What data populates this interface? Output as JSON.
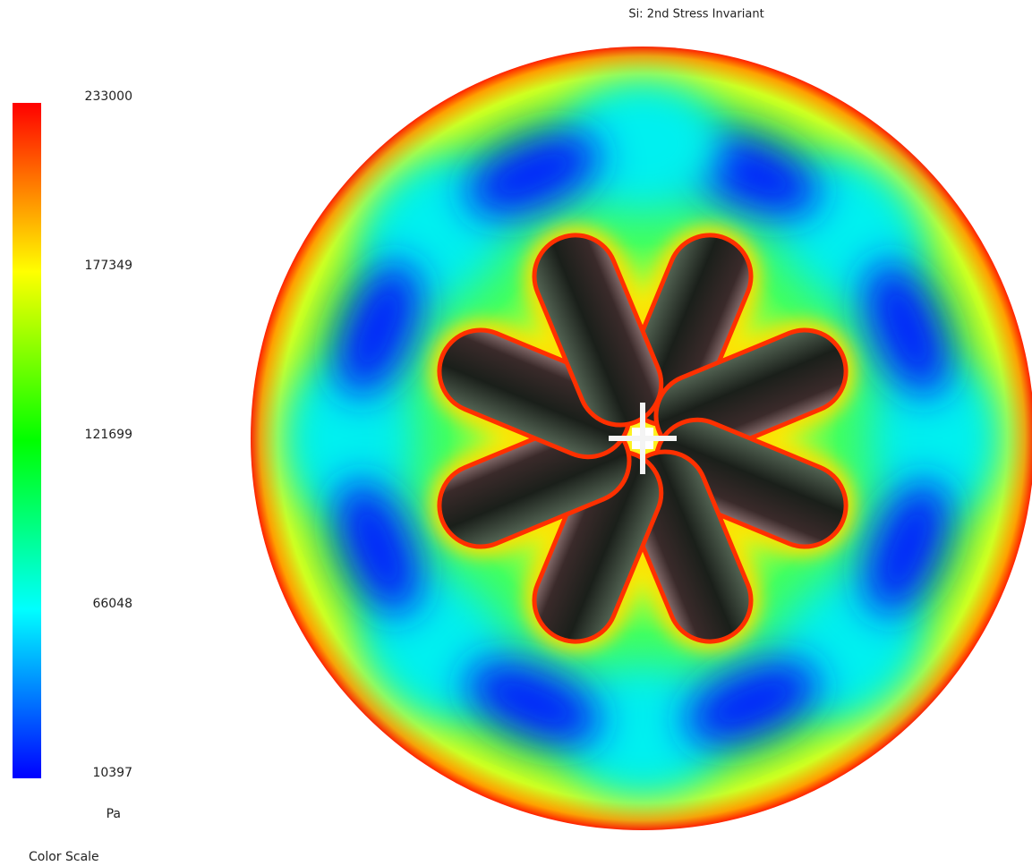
{
  "title": "Si: 2nd Stress Invariant",
  "color_scale": {
    "label": "Color Scale",
    "unit": "Pa",
    "ticks": [
      233000,
      177349,
      121699,
      66048,
      10397
    ]
  }
}
